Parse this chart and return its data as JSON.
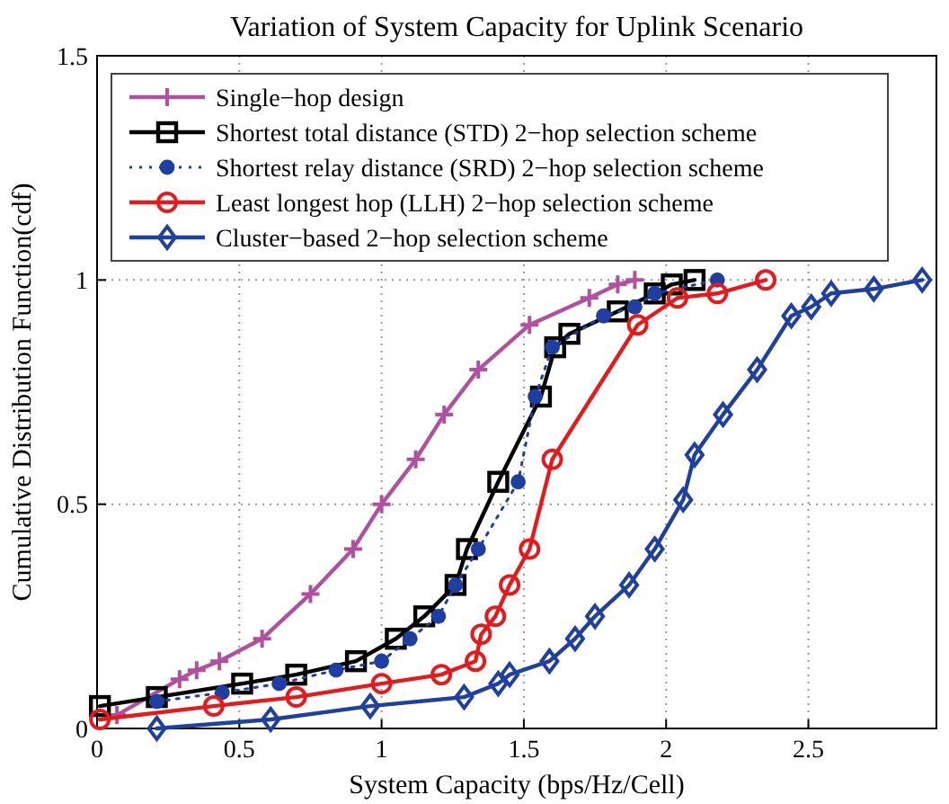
{
  "chart_data": {
    "type": "line",
    "title": "Variation of System Capacity for Uplink Scenario",
    "xlabel": "System Capacity (bps/Hz/Cell)",
    "ylabel": "Cumulative Distribution Function(cdf)",
    "xlim": [
      0,
      2.95
    ],
    "ylim": [
      0,
      1.5
    ],
    "xticks": [
      0,
      0.5,
      1,
      1.5,
      2,
      2.5
    ],
    "yticks": [
      0,
      0.5,
      1,
      1.5
    ],
    "grid": true,
    "legend": "top left",
    "series": [
      {
        "name": "Single−hop design",
        "color": "#b0509f",
        "marker": "cross",
        "line_style": "solid",
        "x": [
          0.07,
          0.29,
          0.35,
          0.43,
          0.58,
          0.75,
          0.9,
          1.0,
          1.12,
          1.22,
          1.34,
          1.52,
          1.73,
          1.83,
          1.89
        ],
        "values": [
          0.03,
          0.11,
          0.13,
          0.15,
          0.2,
          0.3,
          0.4,
          0.5,
          0.6,
          0.7,
          0.8,
          0.9,
          0.96,
          0.99,
          1.0
        ]
      },
      {
        "name": "Shortest total distance (STD) 2−hop selection scheme",
        "color": "#000000",
        "marker": "square",
        "line_style": "solid",
        "x": [
          0.01,
          0.21,
          0.51,
          0.7,
          0.91,
          1.05,
          1.15,
          1.26,
          1.3,
          1.41,
          1.56,
          1.61,
          1.66,
          1.83,
          1.96,
          2.02,
          2.1
        ],
        "values": [
          0.05,
          0.07,
          0.1,
          0.12,
          0.15,
          0.2,
          0.25,
          0.32,
          0.4,
          0.55,
          0.74,
          0.85,
          0.88,
          0.93,
          0.97,
          0.99,
          1.0
        ]
      },
      {
        "name": "Shortest relay distance (SRD) 2−hop selection scheme",
        "color": "#1f3fa0",
        "marker": "circle",
        "line_style": "dotted",
        "x": [
          0.21,
          0.44,
          0.64,
          0.84,
          1.0,
          1.1,
          1.2,
          1.26,
          1.34,
          1.48,
          1.54,
          1.6,
          1.78,
          1.89,
          1.96,
          2.18
        ],
        "values": [
          0.06,
          0.08,
          0.1,
          0.13,
          0.15,
          0.2,
          0.25,
          0.32,
          0.4,
          0.55,
          0.74,
          0.85,
          0.92,
          0.94,
          0.97,
          1.0
        ]
      },
      {
        "name": "Least longest hop (LLH) 2−hop selection scheme",
        "color": "#e41a1c",
        "marker": "circle",
        "line_style": "solid",
        "x": [
          0.01,
          0.41,
          0.7,
          1.0,
          1.21,
          1.33,
          1.35,
          1.4,
          1.45,
          1.52,
          1.6,
          1.9,
          2.04,
          2.18,
          2.35
        ],
        "values": [
          0.02,
          0.05,
          0.07,
          0.1,
          0.12,
          0.15,
          0.21,
          0.25,
          0.32,
          0.4,
          0.6,
          0.9,
          0.96,
          0.97,
          1.0
        ]
      },
      {
        "name": "Cluster−based 2−hop selection scheme",
        "color": "#2040a0",
        "marker": "diamond",
        "line_style": "solid",
        "x": [
          0.21,
          0.61,
          0.96,
          1.29,
          1.41,
          1.45,
          1.59,
          1.68,
          1.75,
          1.87,
          1.96,
          2.06,
          2.1,
          2.2,
          2.32,
          2.44,
          2.51,
          2.58,
          2.73,
          2.9
        ],
        "values": [
          0,
          0.02,
          0.05,
          0.07,
          0.1,
          0.12,
          0.15,
          0.2,
          0.25,
          0.32,
          0.4,
          0.51,
          0.61,
          0.7,
          0.8,
          0.92,
          0.94,
          0.97,
          0.98,
          1.0
        ]
      }
    ]
  }
}
